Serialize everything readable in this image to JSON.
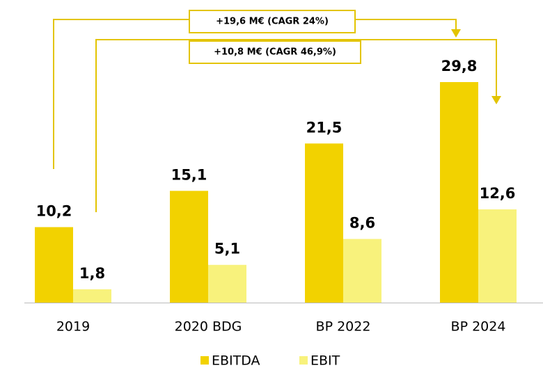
{
  "chart_data": {
    "type": "bar",
    "categories": [
      "2019",
      "2020 BDG",
      "BP 2022",
      "BP 2024"
    ],
    "series": [
      {
        "name": "EBITDA",
        "color": "#f2d200",
        "values": [
          10.2,
          15.1,
          21.5,
          29.8
        ],
        "value_labels": [
          "10,2",
          "15,1",
          "21,5",
          "29,8"
        ]
      },
      {
        "name": "EBIT",
        "color": "#f8f27c",
        "values": [
          1.8,
          5.1,
          8.6,
          12.6
        ],
        "value_labels": [
          "1,8",
          "5,1",
          "8,6",
          "12,6"
        ]
      }
    ],
    "annotations": [
      "+19,6 M€ (CAGR 24%)",
      "+10,8 M€ (CAGR 46,9%)"
    ],
    "legend": "bottom"
  }
}
